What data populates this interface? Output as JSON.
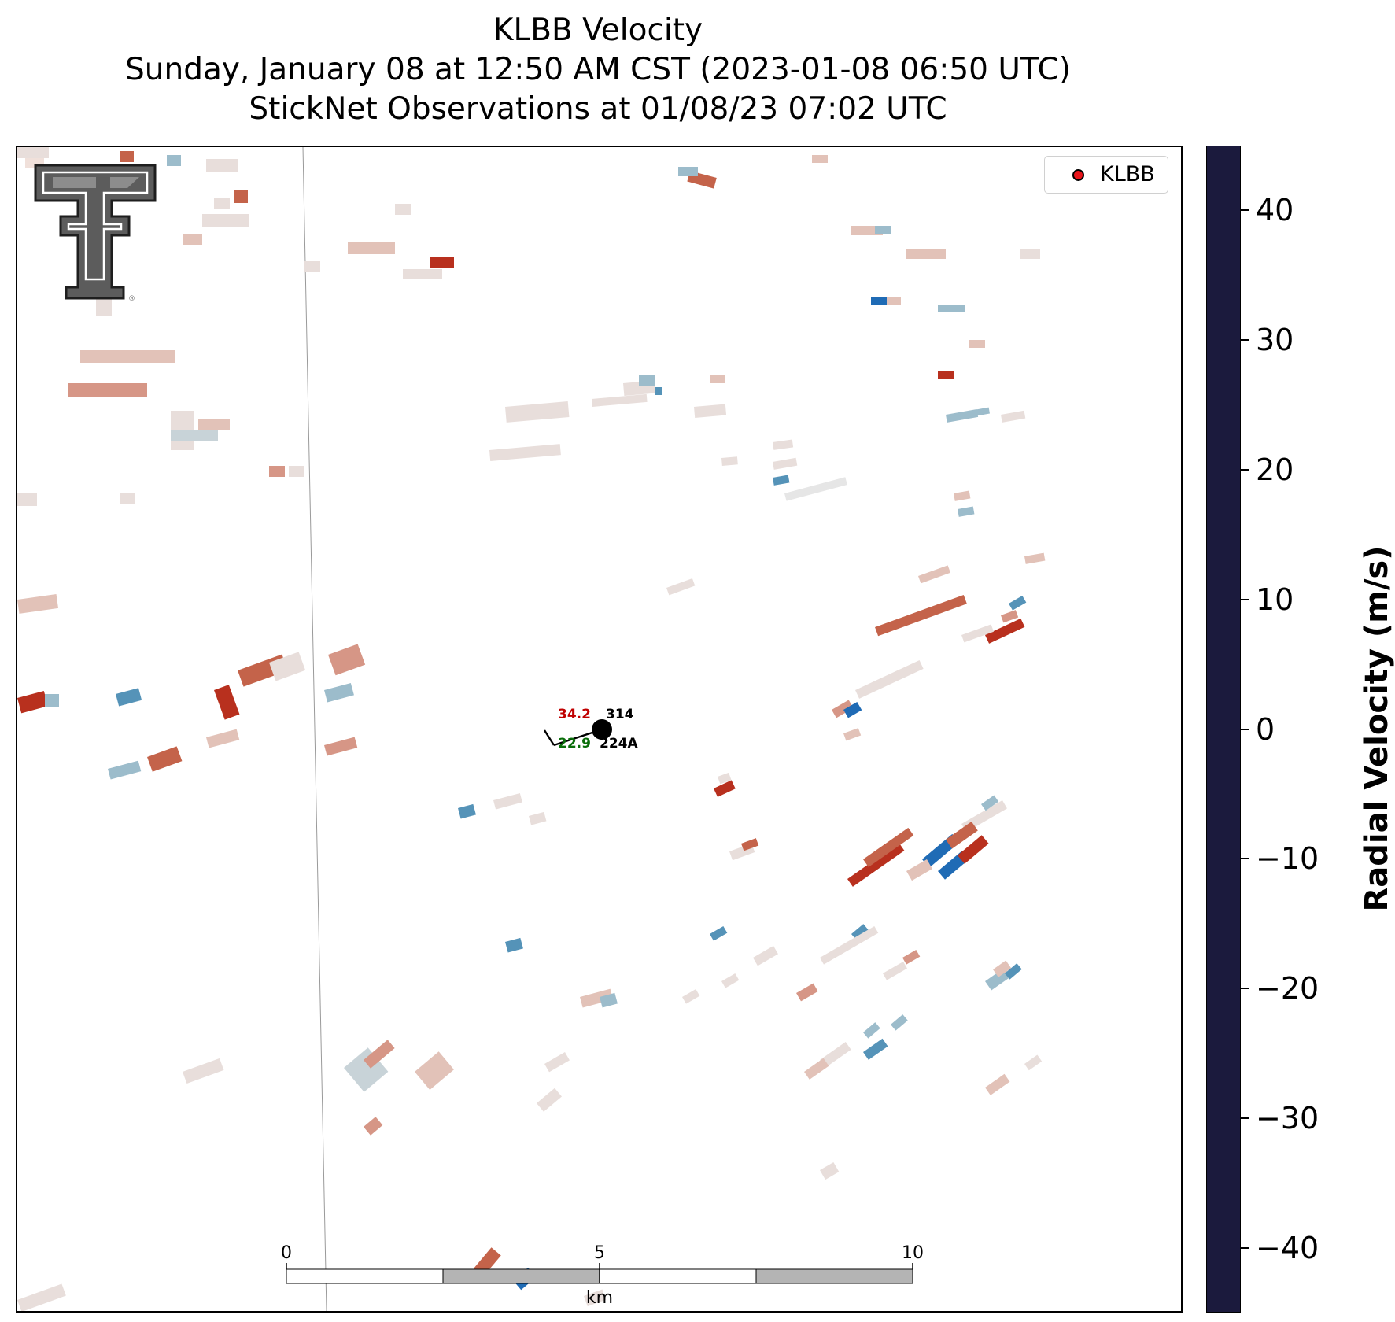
{
  "title": {
    "line1": "KLBB Velocity",
    "line2": "Sunday, January 08 at 12:50 AM CST (2023-01-08 06:50 UTC)",
    "line3": "StickNet Observations at 01/08/23 07:02 UTC"
  },
  "legend": {
    "label": "KLBB",
    "marker_color": "#e8141a"
  },
  "station": {
    "temperature": "34.2",
    "dewpoint": "22.9",
    "pressure_code": "314",
    "id": "224A",
    "temperature_color": "#c00000",
    "dewpoint_color": "#0a6e0a"
  },
  "scale_bar": {
    "unit": "km",
    "labels": [
      "0",
      "5",
      "10"
    ]
  },
  "colorbar": {
    "label": "Radial Velocity (m/s)",
    "range": [
      -45,
      45
    ],
    "ticks": [
      "40",
      "30",
      "20",
      "10",
      "0",
      "−10",
      "−20",
      "−30",
      "−40"
    ],
    "tick_values": [
      40,
      30,
      20,
      10,
      0,
      -10,
      -20,
      -30,
      -40
    ],
    "colormap_stops": [
      {
        "value": -45,
        "color": "#1b1a3d"
      },
      {
        "value": -35,
        "color": "#2a3f9d"
      },
      {
        "value": -27,
        "color": "#1f5fb8"
      },
      {
        "value": -18,
        "color": "#3b8ab8"
      },
      {
        "value": -9,
        "color": "#8fb4c6"
      },
      {
        "value": 0,
        "color": "#ececec"
      },
      {
        "value": 9,
        "color": "#deac9c"
      },
      {
        "value": 18,
        "color": "#cc6a4c"
      },
      {
        "value": 27,
        "color": "#b83322"
      },
      {
        "value": 36,
        "color": "#8c1028"
      },
      {
        "value": 45,
        "color": "#3f0e1c"
      }
    ]
  },
  "logo": {
    "name": "Texas Tech Double T"
  }
}
